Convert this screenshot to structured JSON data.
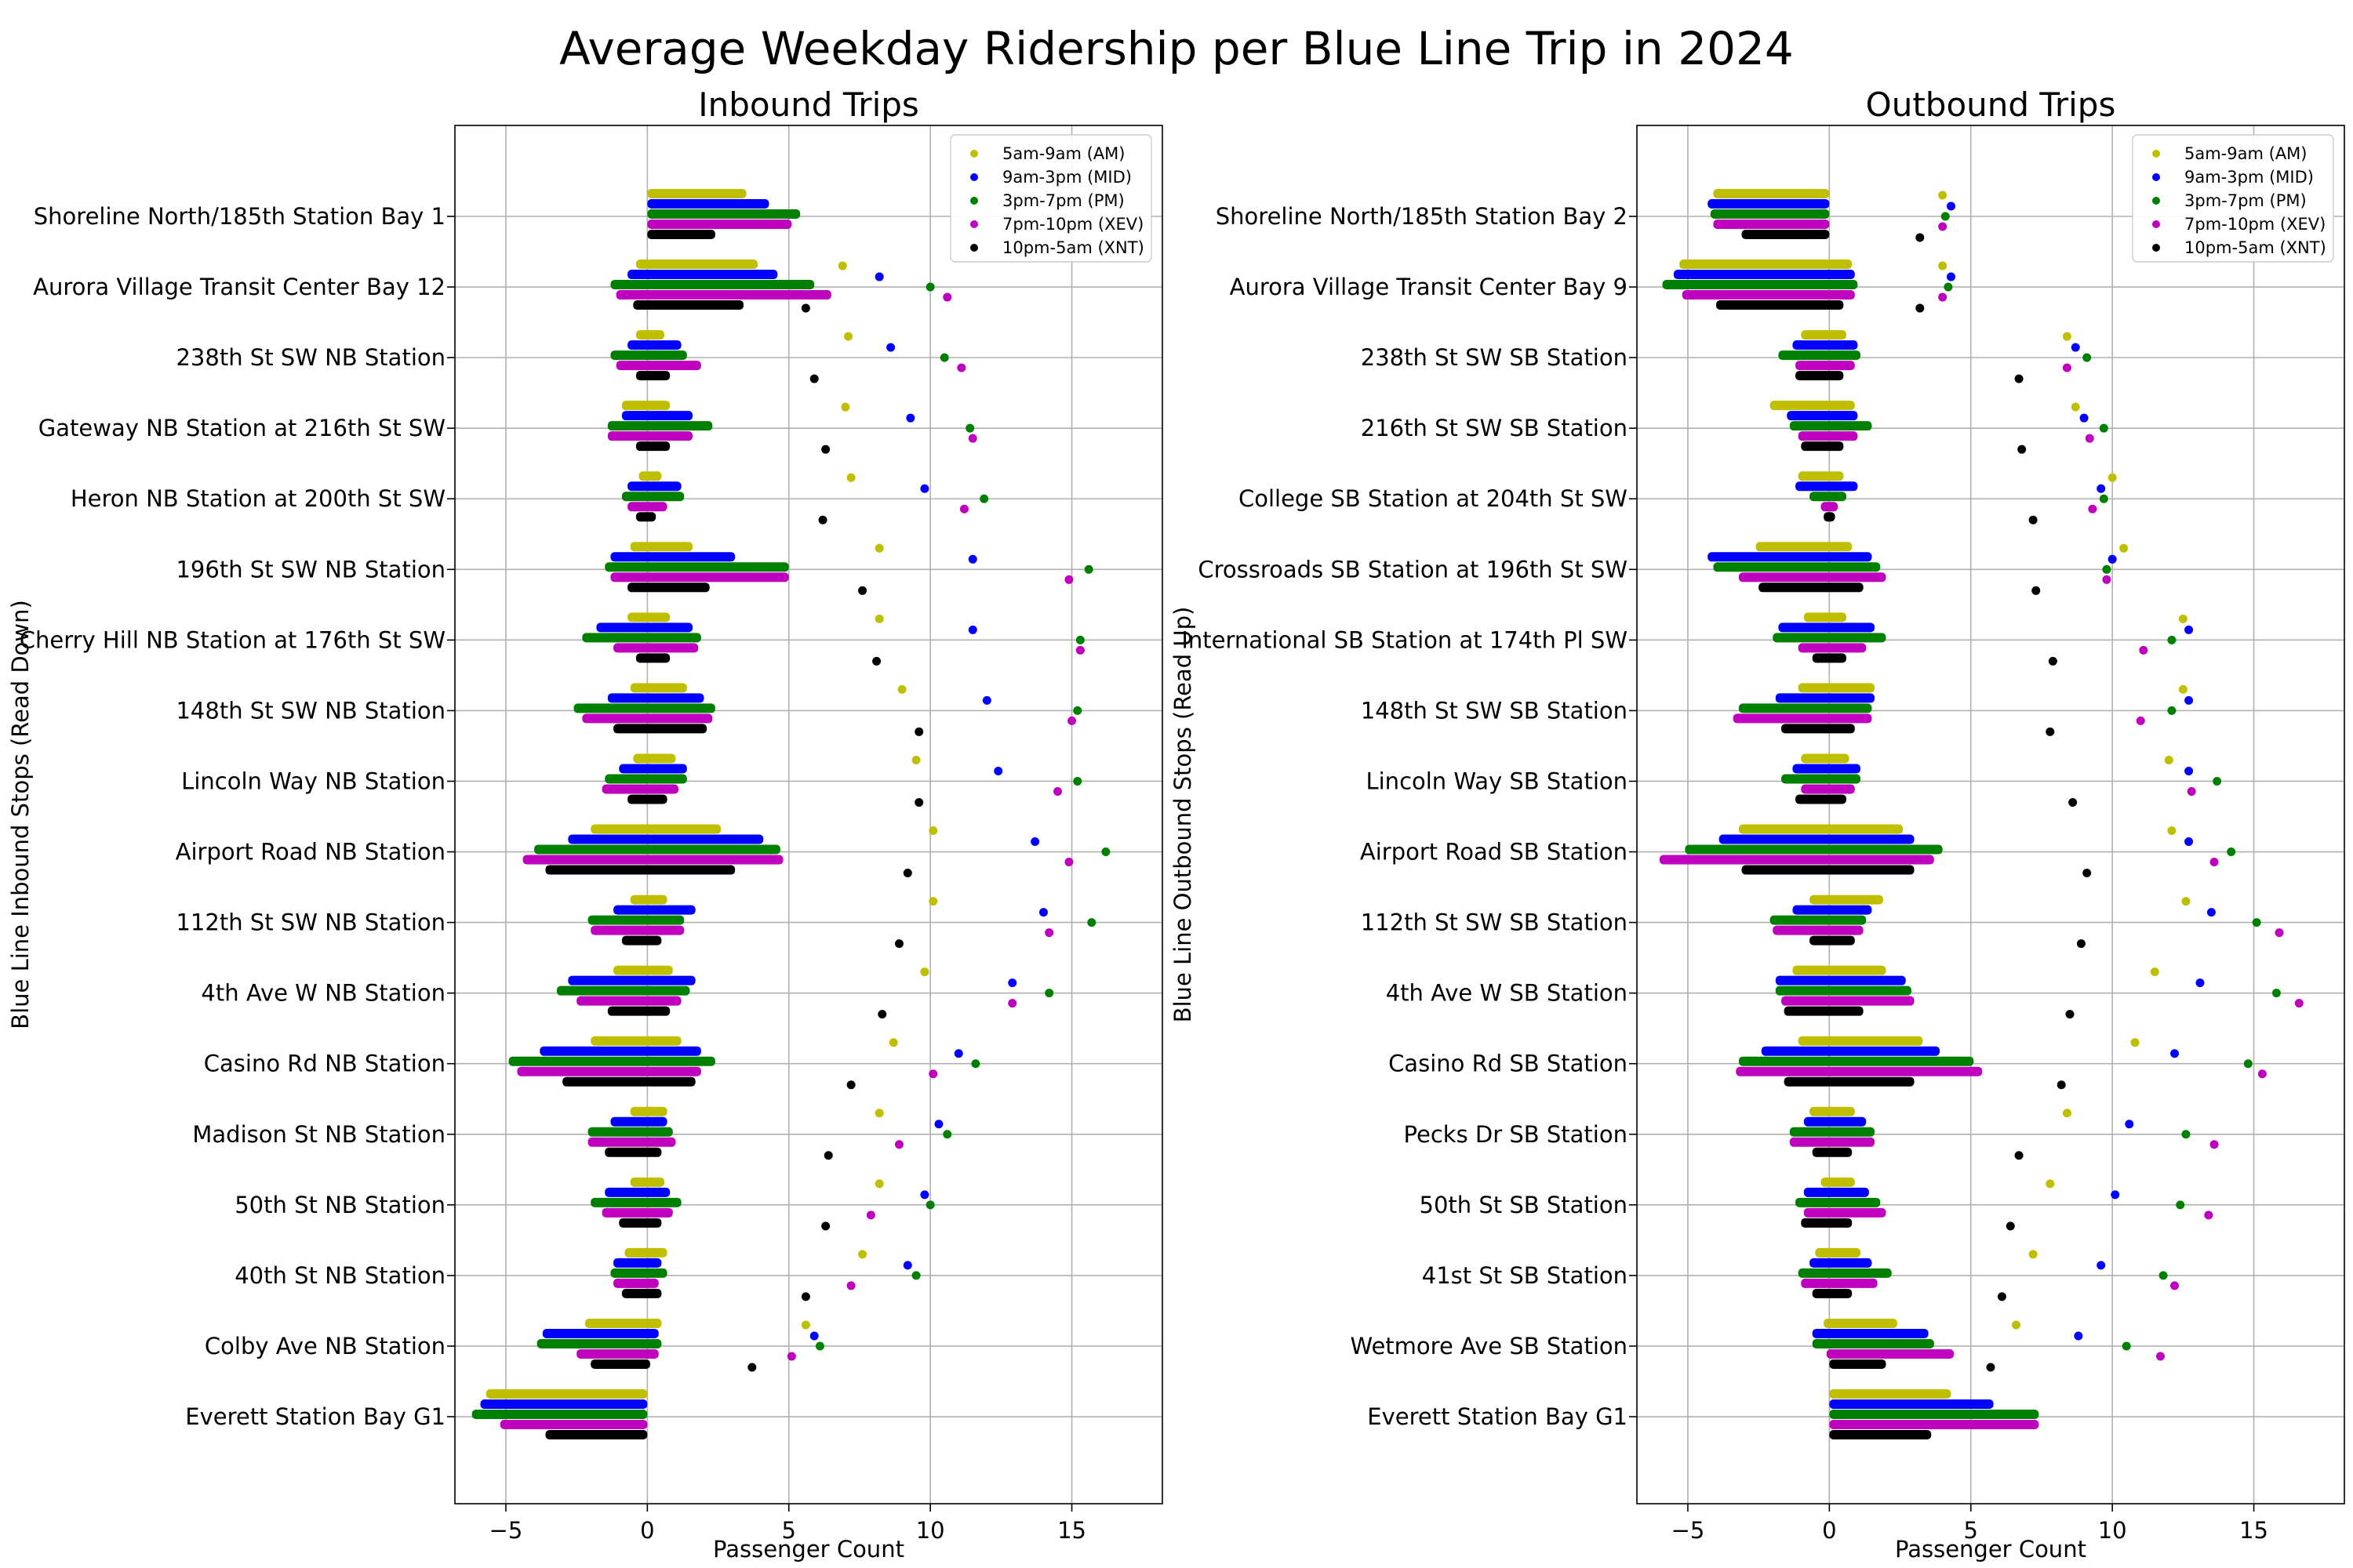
{
  "title": "Average Weekday Ridership per Blue Line Trip in 2024",
  "colors": {
    "AM": "#bfbf00",
    "MID": "#0000ff",
    "PM": "#008000",
    "XEV": "#bf00bf",
    "XNT": "#000000"
  },
  "chart_data": [
    {
      "type": "bar",
      "title": "Inbound Trips",
      "xlabel": "Passenger Count",
      "ylabel": "Blue Line Inbound Stops (Read Down)",
      "xlim": [
        -6.8,
        18.2
      ],
      "xticks": [
        -5,
        0,
        5,
        10,
        15
      ],
      "xtick_labels": [
        "−5",
        "0",
        "5",
        "10",
        "15"
      ],
      "grid": true,
      "legend": {
        "placement": "top-right",
        "entries": [
          "5am-9am (AM)",
          "9am-3pm (MID)",
          "3pm-7pm (PM)",
          "7pm-10pm (XEV)",
          "10pm-5am (XNT)"
        ]
      },
      "categories": [
        "Shoreline North/185th Station Bay 1",
        "Aurora Village Transit Center Bay 12",
        "238th St SW NB Station",
        "Gateway NB Station at 216th St SW",
        "Heron NB Station at 200th St SW",
        "196th St SW NB Station",
        "Cherry Hill NB Station at 176th St SW",
        "148th St SW NB Station",
        "Lincoln Way NB Station",
        "Airport Road NB Station",
        "112th St SW NB Station",
        "4th Ave W NB Station",
        "Casino Rd NB Station",
        "Madison St NB Station",
        "50th St NB Station",
        "40th St NB Station",
        "Colby Ave NB Station",
        "Everett Station Bay G1"
      ],
      "series": [
        {
          "name": "5am-9am (AM)",
          "color": "#bfbf00",
          "bar_left": [
            0,
            -0.4,
            -0.4,
            -0.9,
            -0.3,
            -0.6,
            -0.7,
            -0.6,
            -0.5,
            -2.0,
            -0.6,
            -1.2,
            -2.0,
            -0.6,
            -0.6,
            -0.8,
            -2.2,
            -5.7
          ],
          "bar_right": [
            3.5,
            3.9,
            0.6,
            0.8,
            0.5,
            1.6,
            0.8,
            1.4,
            1.0,
            2.6,
            0.7,
            0.9,
            1.2,
            0.7,
            0.6,
            0.7,
            0.5,
            0
          ],
          "points": [
            null,
            6.9,
            7.1,
            7.0,
            7.2,
            8.2,
            8.2,
            9.0,
            9.5,
            10.1,
            10.1,
            9.8,
            8.7,
            8.2,
            8.2,
            7.6,
            5.6,
            null
          ]
        },
        {
          "name": "9am-3pm (MID)",
          "color": "#0000ff",
          "bar_left": [
            0,
            -0.7,
            -0.7,
            -0.9,
            -0.7,
            -1.3,
            -1.8,
            -1.4,
            -1.0,
            -2.8,
            -1.2,
            -2.8,
            -3.8,
            -1.3,
            -1.5,
            -1.2,
            -3.7,
            -5.9
          ],
          "bar_right": [
            4.3,
            4.6,
            1.2,
            1.6,
            1.2,
            3.1,
            1.6,
            2.0,
            1.4,
            4.1,
            1.7,
            1.7,
            1.9,
            0.7,
            0.8,
            0.5,
            0.4,
            0
          ],
          "points": [
            null,
            8.2,
            8.6,
            9.3,
            9.8,
            11.5,
            11.5,
            12.0,
            12.4,
            13.7,
            14.0,
            12.9,
            11.0,
            10.3,
            9.8,
            9.2,
            5.9,
            null
          ]
        },
        {
          "name": "3pm-7pm (PM)",
          "color": "#008000",
          "bar_left": [
            0,
            -1.3,
            -1.3,
            -1.4,
            -0.9,
            -1.5,
            -2.3,
            -2.6,
            -1.5,
            -4.0,
            -2.1,
            -3.2,
            -4.9,
            -2.1,
            -2.0,
            -1.3,
            -3.9,
            -6.2
          ],
          "bar_right": [
            5.4,
            5.9,
            1.4,
            2.3,
            1.3,
            5.0,
            1.9,
            2.4,
            1.4,
            4.7,
            1.3,
            1.5,
            2.4,
            0.9,
            1.2,
            0.7,
            0.5,
            0
          ],
          "points": [
            null,
            10.0,
            10.5,
            11.4,
            11.9,
            15.6,
            15.3,
            15.2,
            15.2,
            16.2,
            15.7,
            14.2,
            11.6,
            10.6,
            10.0,
            9.5,
            6.1,
            null
          ]
        },
        {
          "name": "7pm-10pm (XEV)",
          "color": "#bf00bf",
          "bar_left": [
            0,
            -1.1,
            -1.1,
            -1.4,
            -0.7,
            -1.3,
            -1.2,
            -2.3,
            -1.6,
            -4.4,
            -2.0,
            -2.5,
            -4.6,
            -2.1,
            -1.6,
            -1.2,
            -2.5,
            -5.2
          ],
          "bar_right": [
            5.1,
            6.5,
            1.9,
            1.6,
            0.7,
            5.0,
            1.8,
            2.3,
            1.1,
            4.8,
            1.3,
            1.2,
            1.9,
            1.0,
            0.9,
            0.4,
            0.4,
            0
          ],
          "points": [
            null,
            10.6,
            11.1,
            11.5,
            11.2,
            14.9,
            15.3,
            15.0,
            14.5,
            14.9,
            14.2,
            12.9,
            10.1,
            8.9,
            7.9,
            7.2,
            5.1,
            null
          ]
        },
        {
          "name": "10pm-5am (XNT)",
          "color": "#000000",
          "bar_left": [
            0,
            -0.5,
            -0.4,
            -0.4,
            -0.4,
            -0.7,
            -0.4,
            -1.2,
            -0.7,
            -3.6,
            -0.9,
            -1.4,
            -3.0,
            -1.5,
            -1.0,
            -0.9,
            -2.0,
            -3.6
          ],
          "bar_right": [
            2.4,
            3.4,
            0.8,
            0.8,
            0.3,
            2.2,
            0.8,
            2.1,
            0.7,
            3.1,
            0.5,
            0.8,
            1.7,
            0.5,
            0.5,
            0.5,
            0.1,
            0
          ],
          "points": [
            null,
            5.6,
            5.9,
            6.3,
            6.2,
            7.6,
            8.1,
            9.6,
            9.6,
            9.2,
            8.9,
            8.3,
            7.2,
            6.4,
            6.3,
            5.6,
            3.7,
            null
          ]
        }
      ]
    },
    {
      "type": "bar",
      "title": "Outbound Trips",
      "xlabel": "Passenger Count",
      "ylabel": "Blue Line Outbound Stops (Read Up)",
      "xlim": [
        -6.8,
        18.2
      ],
      "xticks": [
        -5,
        0,
        5,
        10,
        15
      ],
      "xtick_labels": [
        "−5",
        "0",
        "5",
        "10",
        "15"
      ],
      "grid": true,
      "legend": {
        "placement": "top-right",
        "entries": [
          "5am-9am (AM)",
          "9am-3pm (MID)",
          "3pm-7pm (PM)",
          "7pm-10pm (XEV)",
          "10pm-5am (XNT)"
        ]
      },
      "categories": [
        "Shoreline North/185th Station Bay 2",
        "Aurora Village Transit Center Bay 9",
        "238th St SW SB Station",
        "216th St SW SB Station",
        "College SB Station at 204th St SW",
        "Crossroads SB Station at 196th St SW",
        "International SB Station at 174th Pl SW",
        "148th St SW SB Station",
        "Lincoln Way SB Station",
        "Airport Road SB Station",
        "112th St SW SB Station",
        "4th Ave W SB Station",
        "Casino Rd SB Station",
        "Pecks Dr SB Station",
        "50th St SB Station",
        "41st St SB Station",
        "Wetmore Ave SB Station",
        "Everett Station Bay G1"
      ],
      "series": [
        {
          "name": "5am-9am (AM)",
          "color": "#bfbf00",
          "bar_left": [
            -4.1,
            -5.3,
            -1.0,
            -2.1,
            -1.1,
            -2.6,
            -0.9,
            -1.1,
            -1.0,
            -3.2,
            -0.7,
            -1.3,
            -1.1,
            -0.7,
            -0.3,
            -0.5,
            -0.2,
            0
          ],
          "bar_right": [
            0,
            0.8,
            0.6,
            0.9,
            0.5,
            0.8,
            0.6,
            1.6,
            0.7,
            2.6,
            1.9,
            2.0,
            3.3,
            0.9,
            0.9,
            1.1,
            2.4,
            4.3
          ],
          "points": [
            4.0,
            4.0,
            8.4,
            8.7,
            10.0,
            10.4,
            12.5,
            12.5,
            12.0,
            12.1,
            12.6,
            11.5,
            10.8,
            8.4,
            7.8,
            7.2,
            6.6,
            null
          ]
        },
        {
          "name": "9am-3pm (MID)",
          "color": "#0000ff",
          "bar_left": [
            -4.3,
            -5.5,
            -1.3,
            -1.5,
            -1.2,
            -4.3,
            -1.8,
            -1.9,
            -1.3,
            -3.9,
            -1.3,
            -1.9,
            -2.4,
            -0.9,
            -0.9,
            -0.7,
            -0.6,
            0
          ],
          "bar_right": [
            0,
            0.9,
            1.0,
            1.0,
            1.0,
            1.5,
            1.6,
            1.6,
            1.1,
            3.0,
            1.5,
            2.7,
            3.9,
            1.3,
            1.4,
            1.5,
            3.5,
            5.8
          ],
          "points": [
            4.3,
            4.3,
            8.7,
            9.0,
            9.6,
            10.0,
            12.7,
            12.7,
            12.7,
            12.7,
            13.5,
            13.1,
            12.2,
            10.6,
            10.1,
            9.6,
            8.8,
            null
          ]
        },
        {
          "name": "3pm-7pm (PM)",
          "color": "#008000",
          "bar_left": [
            -4.2,
            -5.9,
            -1.8,
            -1.4,
            -0.7,
            -4.1,
            -2.0,
            -3.2,
            -1.7,
            -5.1,
            -2.1,
            -1.9,
            -3.2,
            -1.4,
            -1.2,
            -1.1,
            -0.6,
            0
          ],
          "bar_right": [
            0,
            1.0,
            1.1,
            1.5,
            0.6,
            1.8,
            2.0,
            1.5,
            1.1,
            4.0,
            1.3,
            2.9,
            5.1,
            1.6,
            1.8,
            2.2,
            3.7,
            7.4
          ],
          "points": [
            4.1,
            4.2,
            9.1,
            9.7,
            9.7,
            9.8,
            12.1,
            12.1,
            13.7,
            14.2,
            15.1,
            15.8,
            14.8,
            12.6,
            12.4,
            11.8,
            10.5,
            null
          ]
        },
        {
          "name": "7pm-10pm (XEV)",
          "color": "#bf00bf",
          "bar_left": [
            -4.1,
            -5.2,
            -1.2,
            -1.1,
            -0.3,
            -3.2,
            -1.1,
            -3.4,
            -1.0,
            -6.0,
            -2.0,
            -1.7,
            -3.3,
            -1.4,
            -0.9,
            -1.0,
            -0.1,
            0
          ],
          "bar_right": [
            0,
            0.9,
            0.9,
            1.0,
            0.3,
            2.0,
            1.3,
            1.5,
            0.9,
            3.7,
            1.2,
            3.0,
            5.4,
            1.6,
            2.0,
            1.7,
            4.4,
            7.4
          ],
          "points": [
            4.0,
            4.0,
            8.4,
            9.2,
            9.3,
            9.8,
            11.1,
            11.0,
            12.8,
            13.6,
            15.9,
            16.6,
            15.3,
            13.6,
            13.4,
            12.2,
            11.7,
            null
          ]
        },
        {
          "name": "10pm-5am (XNT)",
          "color": "#000000",
          "bar_left": [
            -3.1,
            -4.0,
            -1.2,
            -1.0,
            -0.2,
            -2.5,
            -0.6,
            -1.7,
            -1.2,
            -3.1,
            -0.7,
            -1.6,
            -1.6,
            -0.6,
            -1.0,
            -0.6,
            0,
            0
          ],
          "bar_right": [
            0,
            0.5,
            0.5,
            0.5,
            0.2,
            1.2,
            0.6,
            0.9,
            0.6,
            3.0,
            0.9,
            1.2,
            3.0,
            0.8,
            0.8,
            0.8,
            2.0,
            3.6
          ],
          "points": [
            3.2,
            3.2,
            6.7,
            6.8,
            7.2,
            7.3,
            7.9,
            7.8,
            8.6,
            9.1,
            8.9,
            8.5,
            8.2,
            6.7,
            6.4,
            6.1,
            5.7,
            null
          ]
        }
      ]
    }
  ]
}
